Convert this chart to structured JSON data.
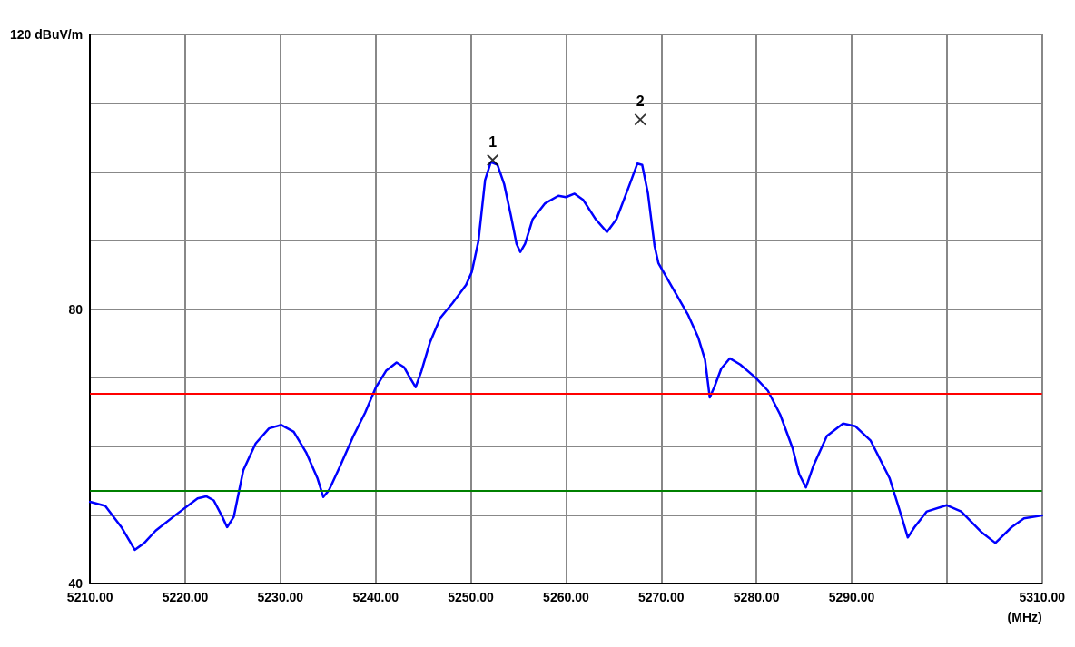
{
  "chart_data": {
    "type": "line",
    "xlabel": "(MHz)",
    "xlim": [
      5210,
      5310
    ],
    "xticks": [
      {
        "value": 5210,
        "label": "5210.00"
      },
      {
        "value": 5220,
        "label": "5220.00"
      },
      {
        "value": 5230,
        "label": "5230.00"
      },
      {
        "value": 5240,
        "label": "5240.00"
      },
      {
        "value": 5250,
        "label": "5250.00"
      },
      {
        "value": 5260,
        "label": "5260.00"
      },
      {
        "value": 5270,
        "label": "5270.00"
      },
      {
        "value": 5280,
        "label": "5280.00"
      },
      {
        "value": 5290,
        "label": "5290.00"
      },
      {
        "value": 5300,
        "label": null
      },
      {
        "value": 5310,
        "label": "5310.00"
      }
    ],
    "ylim": [
      40,
      120
    ],
    "yticks": [
      40,
      {
        "value": 50,
        "label": null
      },
      {
        "value": 60,
        "label": null
      },
      {
        "value": 70,
        "label": null
      },
      80,
      {
        "value": 90,
        "label": null
      },
      {
        "value": 100,
        "label": null
      },
      {
        "value": 110,
        "label": null
      },
      {
        "value": 120,
        "label": "120 dBuV/m"
      }
    ],
    "grid": true,
    "series": [
      {
        "color": "#0000ff",
        "marker": "none",
        "line_style": "solid",
        "x": [
          5210,
          5211.6,
          5213.3,
          5214.7,
          5215.7,
          5216.9,
          5219.1,
          5221.3,
          5222.2,
          5223.0,
          5223.9,
          5224.4,
          5225.1,
          5226.1,
          5227.4,
          5228.8,
          5230.1,
          5231.4,
          5232.7,
          5233.9,
          5234.5,
          5235.1,
          5236.3,
          5237.6,
          5238.9,
          5240.0,
          5241.1,
          5242.2,
          5243.0,
          5243.6,
          5244.2,
          5244.8,
          5245.7,
          5246.8,
          5248.1,
          5249.5,
          5250.1,
          5250.8,
          5251.5,
          5252.1,
          5252.8,
          5253.5,
          5254.2,
          5254.8,
          5255.2,
          5255.7,
          5256.5,
          5257.8,
          5259.2,
          5260.0,
          5260.9,
          5261.8,
          5263.1,
          5264.3,
          5265.3,
          5266.7,
          5267.5,
          5268.0,
          5268.6,
          5269.3,
          5269.7,
          5271.1,
          5272.8,
          5273.9,
          5274.6,
          5275.1,
          5275.6,
          5276.3,
          5277.2,
          5278.3,
          5279.9,
          5281.2,
          5282.5,
          5283.8,
          5284.5,
          5285.2,
          5286.0,
          5287.4,
          5289.1,
          5290.4,
          5292.0,
          5294.0,
          5295.3,
          5295.9,
          5296.6,
          5297.9,
          5300.0,
          5301.5,
          5303.7,
          5305.1,
          5306.8,
          5308.1,
          5310
        ],
        "values": [
          51.9,
          51.3,
          48.2,
          44.9,
          45.9,
          47.7,
          50.1,
          52.4,
          52.7,
          52.1,
          49.7,
          48.2,
          49.7,
          56.5,
          60.4,
          62.6,
          63.1,
          62.1,
          59.1,
          55.3,
          52.6,
          53.6,
          57.2,
          61.3,
          64.9,
          68.5,
          71.0,
          72.2,
          71.5,
          70.0,
          68.6,
          70.9,
          75.1,
          78.7,
          80.9,
          83.5,
          85.4,
          89.9,
          98.8,
          101.4,
          101.0,
          98.2,
          93.7,
          89.5,
          88.3,
          89.5,
          93.1,
          95.4,
          96.5,
          96.3,
          96.8,
          95.9,
          93.1,
          91.2,
          93.1,
          98.2,
          101.2,
          101.0,
          96.9,
          89.2,
          86.7,
          83.3,
          79.2,
          75.8,
          72.6,
          67.1,
          68.7,
          71.3,
          72.8,
          71.9,
          70.0,
          68.1,
          64.6,
          59.7,
          55.9,
          54.0,
          57.2,
          61.5,
          63.3,
          62.9,
          60.8,
          55.3,
          49.5,
          46.7,
          48.2,
          50.5,
          51.4,
          50.5,
          47.4,
          45.9,
          48.2,
          49.5,
          49.9
        ]
      },
      {
        "type": "scatter",
        "color": "#000000",
        "marker": "cross",
        "x": [
          5252.3,
          5267.8
        ],
        "values": [
          101.7,
          107.6
        ]
      }
    ],
    "ref_lines": [
      {
        "axis": "y",
        "value": 67.7,
        "color": "#ff0000",
        "line_style": "solid"
      },
      {
        "axis": "y",
        "value": 53.5,
        "color": "#008000",
        "line_style": "solid"
      }
    ],
    "annotations": [
      {
        "text": "1",
        "x": 5252.3,
        "y": 101.7
      },
      {
        "text": "2",
        "x": 5267.8,
        "y": 107.6
      }
    ]
  }
}
